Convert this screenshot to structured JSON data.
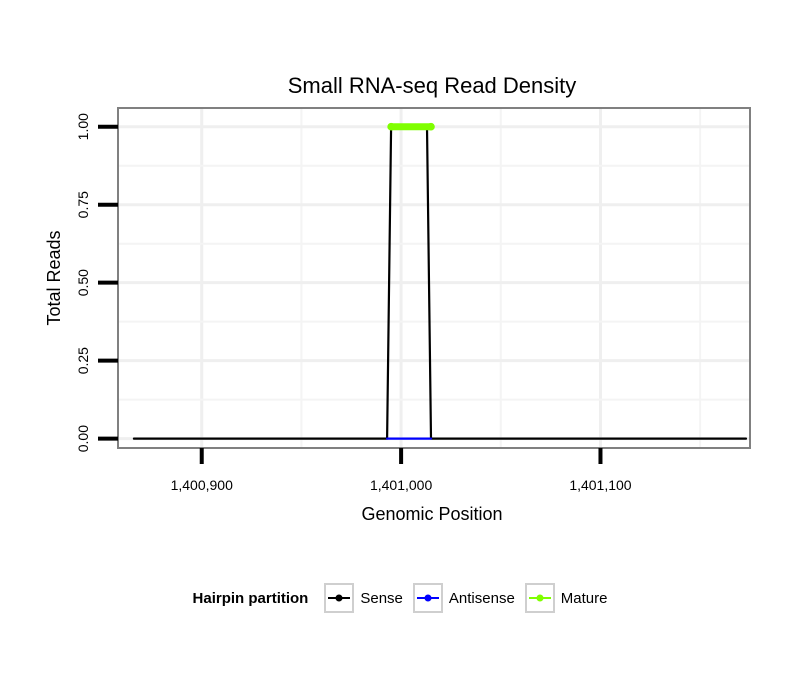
{
  "chart_data": {
    "type": "line",
    "title": "Small RNA-seq Read Density",
    "xlabel": "Genomic Position",
    "ylabel": "Total Reads",
    "xlim": [
      1400858,
      1401175
    ],
    "ylim": [
      -0.03,
      1.06
    ],
    "xticks": [
      1400900,
      1401000,
      1401100
    ],
    "xtick_labels": [
      "1,400,900",
      "1,401,000",
      "1,401,100"
    ],
    "yticks": [
      0,
      0.25,
      0.5,
      0.75,
      1.0
    ],
    "ytick_labels": [
      "0.00",
      "0.25",
      "0.50",
      "0.75",
      "1.00"
    ],
    "grid": true,
    "series": [
      {
        "name": "Sense",
        "color": "#000000",
        "x": [
          1400866,
          1400993,
          1400995,
          1401013,
          1401015,
          1401173
        ],
        "y": [
          0,
          0,
          1,
          1,
          0,
          0
        ]
      },
      {
        "name": "Antisense",
        "color": "#0000ff",
        "x": [
          1400993,
          1401015
        ],
        "y": [
          0,
          0
        ]
      },
      {
        "name": "Mature",
        "color": "#7fff00",
        "x": [
          1400995,
          1401015
        ],
        "y": [
          1,
          1
        ]
      }
    ]
  },
  "legend": {
    "title": "Hairpin partition",
    "items": [
      {
        "label": "Sense",
        "color": "#000000"
      },
      {
        "label": "Antisense",
        "color": "#0000ff"
      },
      {
        "label": "Mature",
        "color": "#7fff00"
      }
    ]
  }
}
